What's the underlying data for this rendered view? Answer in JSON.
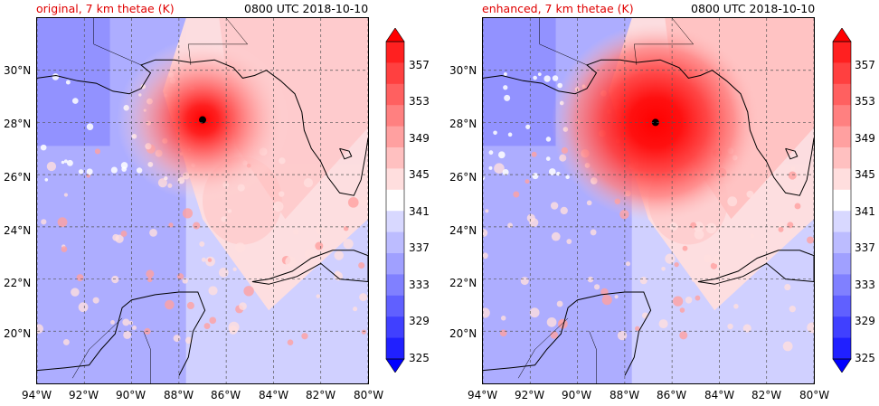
{
  "panels": [
    {
      "title": "original, 7 km thetae (K)",
      "time": "0800 UTC 2018-10-10",
      "storm_center": {
        "lon": -87.0,
        "lat": 28.1
      },
      "core_strength": 0.85
    },
    {
      "title": "enhanced, 7 km thetae (K)",
      "time": "0800 UTC 2018-10-10",
      "storm_center": {
        "lon": -86.7,
        "lat": 28.0
      },
      "core_strength": 1.0
    }
  ],
  "map": {
    "lon_ticks": [
      "94°W",
      "92°W",
      "90°W",
      "88°W",
      "86°W",
      "84°W",
      "82°W",
      "80°W"
    ],
    "lat_ticks": [
      "30°N",
      "28°N",
      "26°N",
      "24°N",
      "22°N",
      "20°N"
    ],
    "lon_range": [
      -94,
      -80
    ],
    "lat_range": [
      18,
      32
    ],
    "grid": true
  },
  "colorbar": {
    "labels": [
      "357",
      "353",
      "349",
      "345",
      "341",
      "337",
      "333",
      "329",
      "325"
    ],
    "min": 325,
    "max": 359,
    "colors": [
      "#0000ff",
      "#2020ff",
      "#4040ff",
      "#6060ff",
      "#8080ff",
      "#a0a0ff",
      "#bcbcff",
      "#d8d8ff",
      "#ffffff",
      "#ffdede",
      "#ffc0c0",
      "#ffa0a0",
      "#ff8080",
      "#ff6060",
      "#ff4040",
      "#ff2020",
      "#ff0000"
    ]
  },
  "colors": {
    "title_red": "#e00000"
  }
}
